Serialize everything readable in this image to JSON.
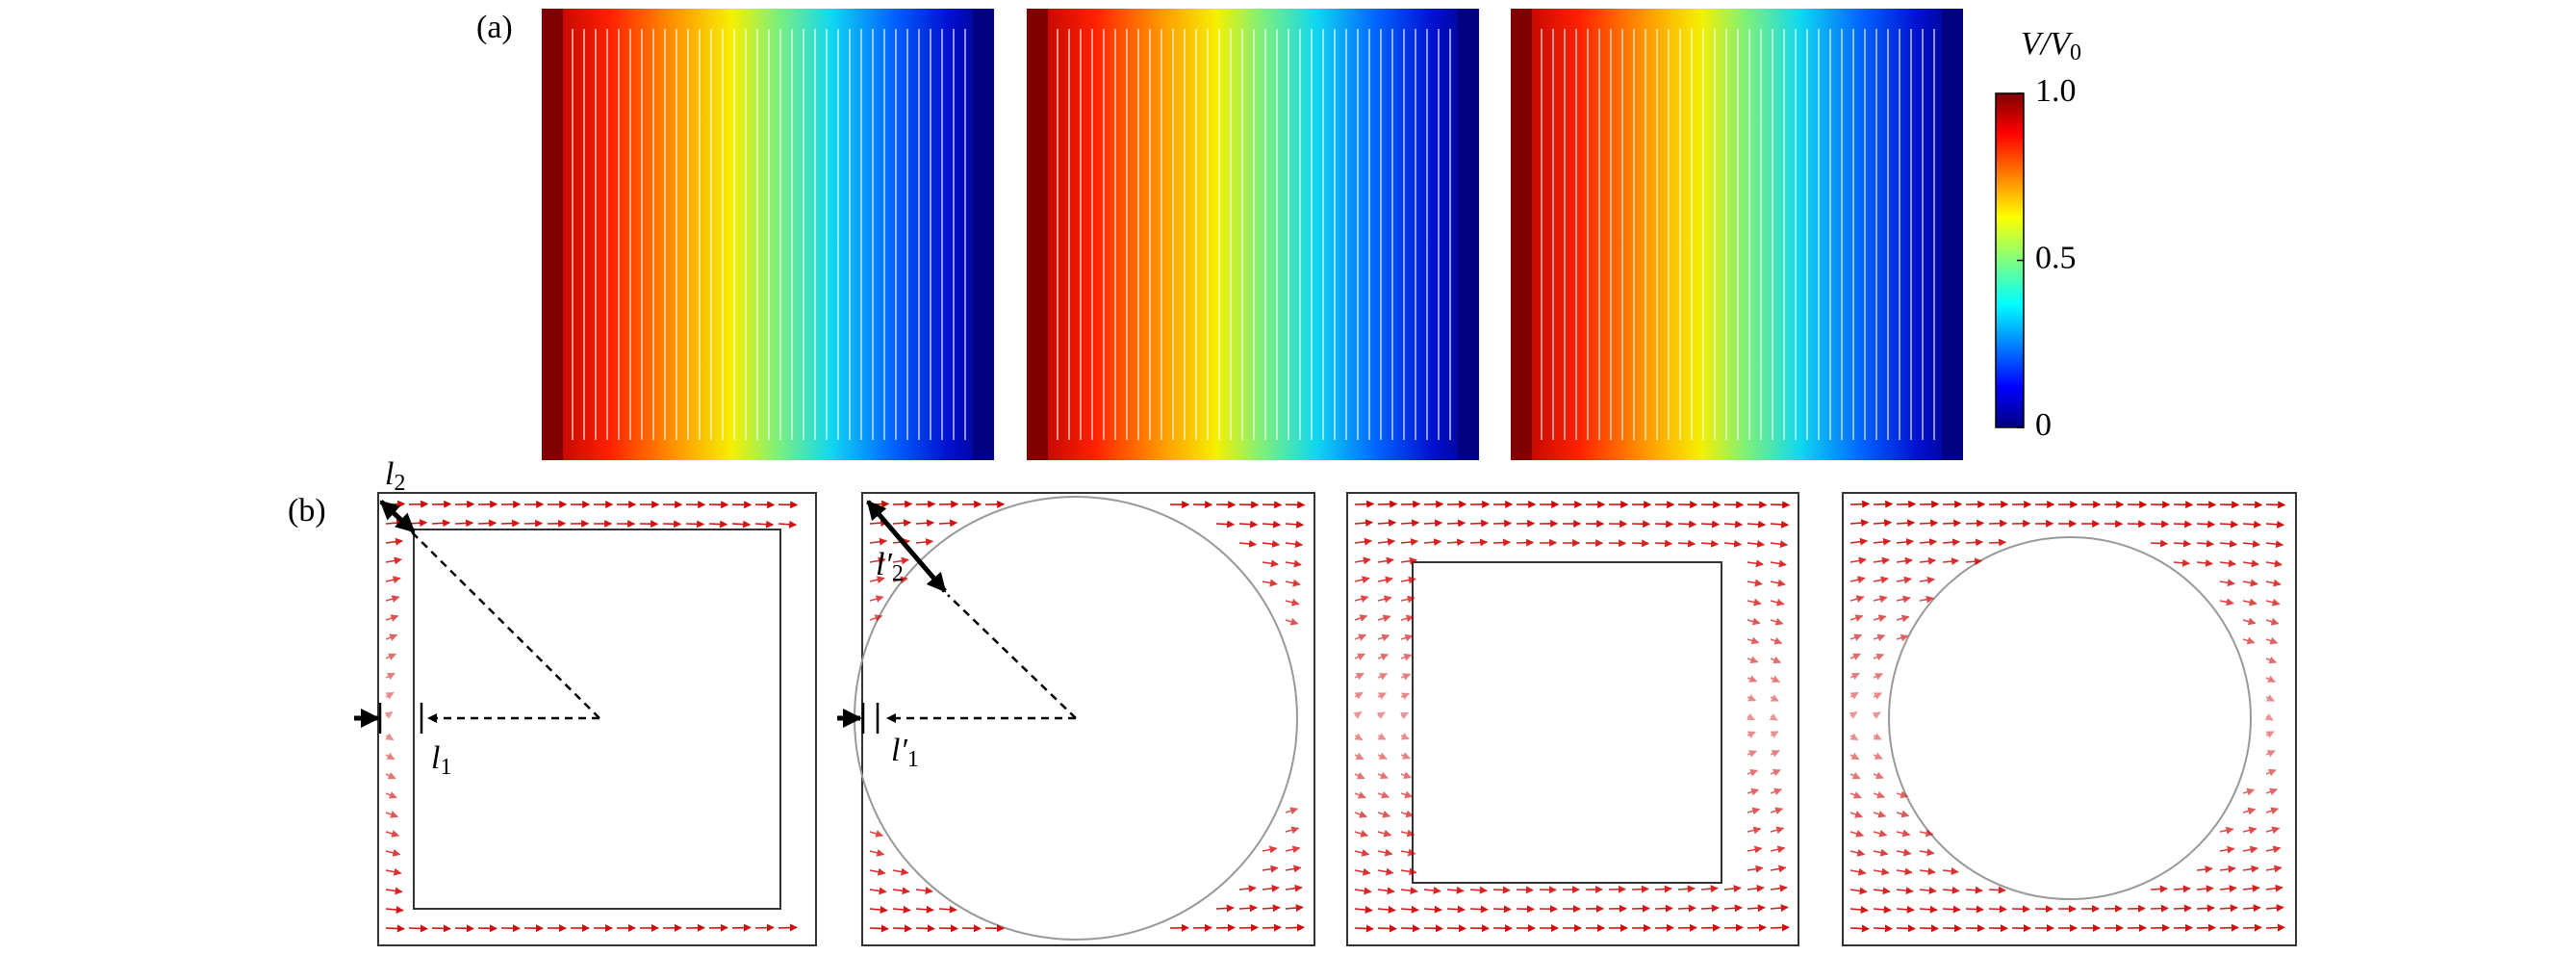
{
  "panels": [
    {
      "label": "(a)"
    },
    {
      "label": "(b)"
    }
  ],
  "colorbar": {
    "title": {
      "text": "V/V",
      "subscript": "0"
    },
    "lim": [
      0,
      1
    ],
    "ticks": [
      {
        "value": 1,
        "label": "1.0"
      },
      0.5,
      0
    ]
  },
  "annotations": [
    {
      "symbol": "l",
      "subscript": "2"
    },
    {
      "symbol": "l",
      "subscript": "1"
    },
    {
      "symbol": "l′",
      "subscript": "2"
    },
    {
      "symbol": "l′",
      "subscript": "1"
    }
  ]
}
